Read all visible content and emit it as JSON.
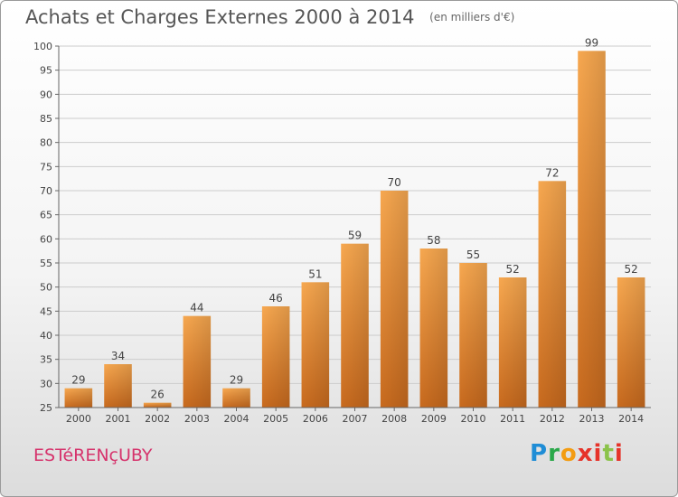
{
  "header": {
    "title": "Achats et Charges Externes 2000 à 2014",
    "subtitle": "(en milliers d'€)"
  },
  "footer": {
    "commune": "ESTéRENçUBY",
    "logo": [
      "P",
      "r",
      "o",
      "x",
      "i",
      "t",
      "i"
    ]
  },
  "colors": {
    "bar_light": "#f7a850",
    "bar_dark": "#c86a1e",
    "grid": "#cccccc",
    "commune": "#d6336c"
  },
  "chart_data": {
    "type": "bar",
    "title": "Achats et Charges Externes 2000 à 2014",
    "subtitle": "(en milliers d'€)",
    "categories": [
      "2000",
      "2001",
      "2002",
      "2003",
      "2004",
      "2005",
      "2006",
      "2007",
      "2008",
      "2009",
      "2010",
      "2011",
      "2012",
      "2013",
      "2014"
    ],
    "values": [
      29,
      34,
      26,
      44,
      29,
      46,
      51,
      59,
      70,
      58,
      55,
      52,
      72,
      99,
      52
    ],
    "data_labels": [
      "29",
      "34",
      "26",
      "44",
      "29",
      "46",
      "51",
      "59",
      "70",
      "58",
      "55",
      "52",
      "72",
      "99",
      "52"
    ],
    "ylim": [
      25,
      100
    ],
    "yticks": [
      25,
      30,
      35,
      40,
      45,
      50,
      55,
      60,
      65,
      70,
      75,
      80,
      85,
      90,
      95,
      100
    ],
    "grid": true,
    "xlabel": "",
    "ylabel": ""
  }
}
